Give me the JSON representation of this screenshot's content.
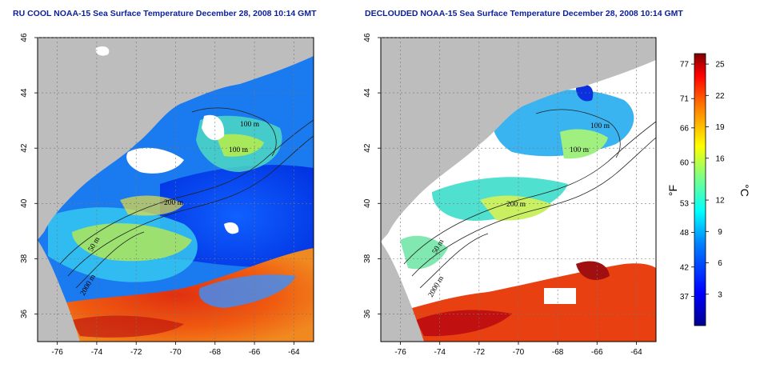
{
  "chart_data": [
    {
      "type": "heatmap",
      "title": "RU COOL NOAA-15 Sea Surface Temperature December 28, 2008 10:14 GMT",
      "xlabel": "",
      "ylabel": "",
      "xlim": [
        -77,
        -63
      ],
      "ylim": [
        35,
        46
      ],
      "xticks": [
        -76,
        -74,
        -72,
        -70,
        -68,
        -66,
        -64
      ],
      "xtick_labels": [
        "-76",
        "-74",
        "-72",
        "-70",
        "-68",
        "-66",
        "-64"
      ],
      "yticks": [
        36,
        38,
        40,
        42,
        44,
        46
      ],
      "ytick_labels": [
        "36",
        "38",
        "40",
        "42",
        "44",
        "46"
      ],
      "grid": "dotted",
      "contour_labels": [
        "100 m",
        "100 m",
        "200 m",
        "50 m",
        "2000 m"
      ],
      "regions": [
        {
          "name": "land",
          "color": "#bdbdbd"
        },
        {
          "name": "cloud",
          "color": "#ffffff"
        }
      ]
    },
    {
      "type": "heatmap",
      "title": "DECLOUDED NOAA-15 Sea Surface Temperature December 28, 2008 10:14 GMT",
      "xlabel": "",
      "ylabel": "",
      "xlim": [
        -77,
        -63
      ],
      "ylim": [
        35,
        46
      ],
      "xticks": [
        -76,
        -74,
        -72,
        -70,
        -68,
        -66,
        -64
      ],
      "xtick_labels": [
        "-76",
        "-74",
        "-72",
        "-70",
        "-68",
        "-66",
        "-64"
      ],
      "yticks": [
        36,
        38,
        40,
        42,
        44,
        46
      ],
      "ytick_labels": [
        "36",
        "38",
        "40",
        "42",
        "44",
        "46"
      ],
      "grid": "dotted",
      "contour_labels": [
        "100 m",
        "100 m",
        "200 m",
        "50 m",
        "2000 m"
      ],
      "regions": [
        {
          "name": "land",
          "color": "#bdbdbd"
        },
        {
          "name": "no-data",
          "color": "#ffffff"
        }
      ]
    }
  ],
  "colorbar": {
    "fahrenheit_label": "°F",
    "celsius_label": "°C",
    "range_c": [
      0,
      26
    ],
    "fahrenheit_ticks": [
      {
        "label": "77",
        "value_c": 25
      },
      {
        "label": "71",
        "value_c": 21.7
      },
      {
        "label": "66",
        "value_c": 18.9
      },
      {
        "label": "60",
        "value_c": 15.6
      },
      {
        "label": "53",
        "value_c": 11.7
      },
      {
        "label": "48",
        "value_c": 8.9
      },
      {
        "label": "42",
        "value_c": 5.6
      },
      {
        "label": "37",
        "value_c": 2.8
      }
    ],
    "celsius_ticks": [
      {
        "label": "25",
        "value_c": 25
      },
      {
        "label": "22",
        "value_c": 22
      },
      {
        "label": "19",
        "value_c": 19
      },
      {
        "label": "16",
        "value_c": 16
      },
      {
        "label": "12",
        "value_c": 12
      },
      {
        "label": "9",
        "value_c": 9
      },
      {
        "label": "6",
        "value_c": 6
      },
      {
        "label": "3",
        "value_c": 3
      }
    ],
    "colors": [
      "#00008f",
      "#0000ff",
      "#0080ff",
      "#00ffff",
      "#80ff80",
      "#ffff00",
      "#ff8000",
      "#ff0000",
      "#800000"
    ]
  }
}
